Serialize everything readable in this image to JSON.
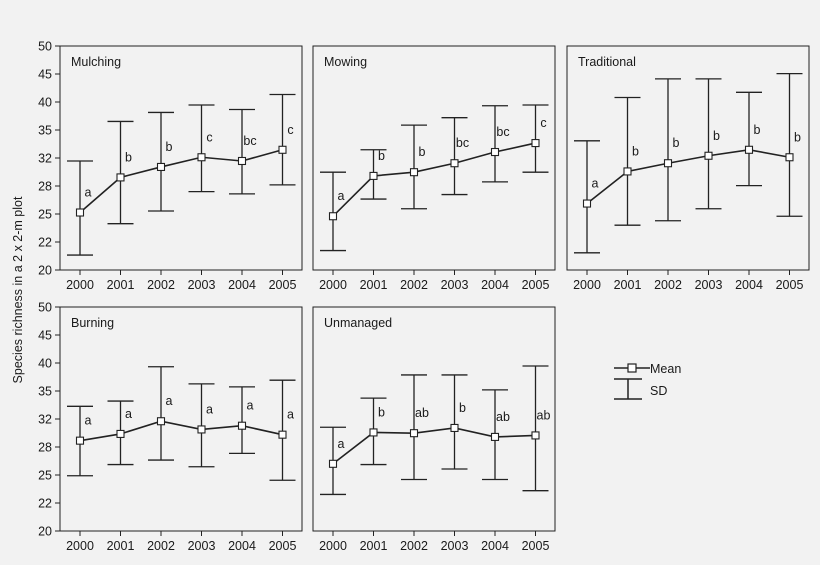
{
  "figure": {
    "ylabel": "Species richness in a 2 x 2-m plot"
  },
  "legend": {
    "mean_label": "Mean",
    "sd_label": "SD"
  },
  "chart_data": [
    {
      "type": "line",
      "title": "Mulching",
      "x": [
        "2000",
        "2001",
        "2002",
        "2003",
        "2004",
        "2005"
      ],
      "yticks": [
        "20",
        "22",
        "25",
        "28",
        "32",
        "35",
        "40",
        "45",
        "50"
      ],
      "ylim": [
        20,
        50
      ],
      "series": [
        {
          "mean": [
            27.7,
            32.4,
            33.8,
            35.1,
            34.6,
            36.1
          ],
          "sd_low": [
            22.0,
            26.2,
            27.9,
            30.5,
            30.2,
            31.4
          ],
          "sd_high": [
            34.6,
            39.9,
            41.1,
            42.1,
            41.5,
            43.5
          ],
          "letters": [
            "a",
            "b",
            "b",
            "c",
            "bc",
            "c"
          ]
        }
      ]
    },
    {
      "type": "line",
      "title": "Mowing",
      "x": [
        "2000",
        "2001",
        "2002",
        "2003",
        "2004",
        "2005"
      ],
      "yticks": [],
      "ylim": [
        20,
        50
      ],
      "series": [
        {
          "mean": [
            27.2,
            32.6,
            33.1,
            34.3,
            35.8,
            37.0
          ],
          "sd_low": [
            22.6,
            29.5,
            28.2,
            30.1,
            31.8,
            33.1
          ],
          "sd_high": [
            33.1,
            36.1,
            39.4,
            40.4,
            42.0,
            42.1
          ],
          "letters": [
            "a",
            "b",
            "b",
            "bc",
            "bc",
            "c"
          ]
        }
      ]
    },
    {
      "type": "line",
      "title": "Traditional",
      "x": [
        "2000",
        "2001",
        "2002",
        "2003",
        "2004",
        "2005"
      ],
      "yticks": [],
      "ylim": [
        20,
        50
      ],
      "series": [
        {
          "mean": [
            28.9,
            33.2,
            34.3,
            35.3,
            36.1,
            35.1
          ],
          "sd_low": [
            22.3,
            26.0,
            26.6,
            28.2,
            31.3,
            27.2
          ],
          "sd_high": [
            37.3,
            43.1,
            45.6,
            45.6,
            43.8,
            46.3
          ],
          "letters": [
            "a",
            "b",
            "b",
            "b",
            "b",
            "b"
          ]
        }
      ]
    },
    {
      "type": "line",
      "title": "Burning",
      "x": [
        "2000",
        "2001",
        "2002",
        "2003",
        "2004",
        "2005"
      ],
      "yticks": [
        "20",
        "22",
        "25",
        "28",
        "32",
        "35",
        "40",
        "45",
        "50"
      ],
      "ylim": [
        20,
        50
      ],
      "series": [
        {
          "mean": [
            32.1,
            33.0,
            34.7,
            33.6,
            34.1,
            32.9
          ],
          "sd_low": [
            27.4,
            28.9,
            29.5,
            28.6,
            30.4,
            26.8
          ],
          "sd_high": [
            36.7,
            37.4,
            42.0,
            39.7,
            39.3,
            40.2
          ],
          "letters": [
            "a",
            "a",
            "a",
            "a",
            "a",
            "a"
          ]
        }
      ]
    },
    {
      "type": "line",
      "title": "Unmanaged",
      "x": [
        "2000",
        "2001",
        "2002",
        "2003",
        "2004",
        "2005"
      ],
      "yticks": [],
      "ylim": [
        20,
        50
      ],
      "series": [
        {
          "mean": [
            29.0,
            33.2,
            33.1,
            33.8,
            32.6,
            32.8
          ],
          "sd_low": [
            24.9,
            28.9,
            26.9,
            28.3,
            26.9,
            25.4
          ],
          "sd_high": [
            33.9,
            37.8,
            40.9,
            40.9,
            38.9,
            42.1
          ],
          "letters": [
            "a",
            "b",
            "ab",
            "b",
            "ab",
            "ab"
          ]
        }
      ]
    }
  ]
}
